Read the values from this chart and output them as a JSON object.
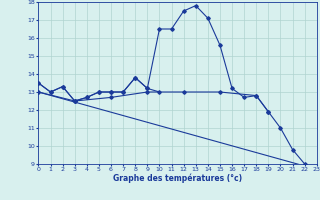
{
  "xlabel": "Graphe des températures (°c)",
  "bg_color": "#d8f0ee",
  "line_color": "#1a3a9a",
  "grid_color": "#b0d4d0",
  "ylim": [
    9,
    18
  ],
  "yticks": [
    9,
    10,
    11,
    12,
    13,
    14,
    15,
    16,
    17,
    18
  ],
  "xlim": [
    0,
    23
  ],
  "xticks": [
    0,
    1,
    2,
    3,
    4,
    5,
    6,
    7,
    8,
    9,
    10,
    11,
    12,
    13,
    14,
    15,
    16,
    17,
    18,
    19,
    20,
    21,
    22,
    23
  ],
  "series": [
    {
      "x": [
        0,
        1,
        2,
        3,
        4,
        5,
        6,
        7,
        8,
        9,
        10,
        11,
        12,
        13,
        14,
        15,
        16,
        17,
        18,
        19,
        20,
        21,
        22,
        23
      ],
      "y": [
        13.5,
        13.0,
        13.3,
        12.5,
        12.7,
        13.0,
        13.0,
        13.0,
        13.8,
        13.2,
        16.5,
        16.5,
        17.5,
        17.8,
        17.1,
        15.6,
        13.2,
        12.7,
        12.8,
        11.9,
        11.0,
        9.8,
        9.0,
        8.7
      ]
    },
    {
      "x": [
        0,
        1,
        2,
        3,
        4,
        5,
        6,
        7,
        8,
        9,
        10
      ],
      "y": [
        13.5,
        13.0,
        13.3,
        12.5,
        12.7,
        13.0,
        13.0,
        13.0,
        13.8,
        13.2,
        13.0
      ]
    },
    {
      "x": [
        0,
        3,
        6,
        9,
        12,
        15,
        18,
        19
      ],
      "y": [
        13.0,
        12.5,
        12.7,
        13.0,
        13.0,
        13.0,
        12.8,
        11.9
      ]
    },
    {
      "x": [
        0,
        23
      ],
      "y": [
        13.0,
        8.7
      ]
    }
  ]
}
